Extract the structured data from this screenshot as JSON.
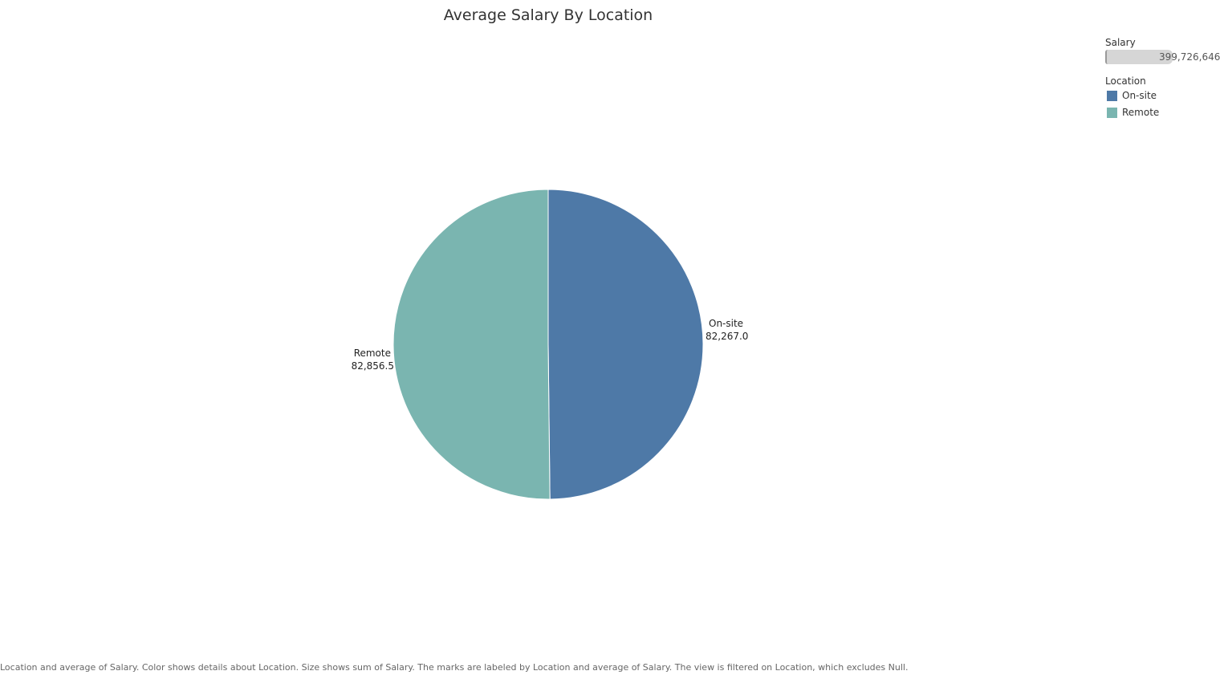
{
  "chart_data": {
    "type": "pie",
    "title": "Average Salary By Location",
    "categories": [
      "On-site",
      "Remote"
    ],
    "values": [
      82267.0,
      82856.5
    ],
    "value_labels": [
      "82,267.0",
      "82,856.5"
    ],
    "colors": [
      "#4e79a7",
      "#7ab5b0"
    ],
    "legend": {
      "size_title": "Salary",
      "size_max_label": "399,726,646",
      "color_title": "Location",
      "placement": "top-right"
    }
  },
  "caption": "Location and average of Salary.  Color shows details about Location.  Size shows sum of Salary.  The marks are labeled by Location and average of Salary. The view is filtered on Location, which excludes Null."
}
